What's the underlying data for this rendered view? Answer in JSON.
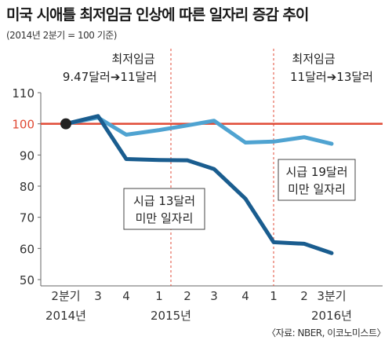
{
  "title": "미국 시애틀 최저임금 인상에 따른 일자리 증감 추이",
  "subtitle": "(2014년 2분기 = 100 기준)",
  "source": "〈자료: NBER, 이코노미스트〉",
  "annotations": {
    "wage1_title": "최저임금",
    "wage1_value": "9.47달러➔11달러",
    "wage2_title": "최저임금",
    "wage2_value": "11달러➔13달러"
  },
  "chart_data": {
    "type": "line",
    "categories": [
      "2분기",
      "3",
      "4",
      "1",
      "2",
      "3",
      "4",
      "1",
      "2",
      "3분기"
    ],
    "year_labels": [
      "2014년",
      "2015년",
      "2016년"
    ],
    "ylim": [
      50,
      110
    ],
    "yticks": [
      "110",
      "100",
      "90",
      "80",
      "70",
      "60",
      "50"
    ],
    "baseline": 100,
    "series": [
      {
        "name": "시급 19달러 미만 일자리",
        "label_lines": [
          "시급 19달러",
          "미만 일자리"
        ],
        "color": "#4fa3d1",
        "values": [
          100,
          102,
          96.5,
          98,
          99.5,
          101,
          94,
          94.3,
          95.7,
          93.6
        ]
      },
      {
        "name": "시급 13달러 미만 일자리",
        "label_lines": [
          "시급 13달러",
          "미만 일자리"
        ],
        "color": "#1a5d8f",
        "values": [
          100,
          102.5,
          88.7,
          88.4,
          88.3,
          85.5,
          76,
          62,
          61.5,
          58.5
        ]
      }
    ],
    "colors": {
      "baseline": "#e04a35",
      "marker": "#222222",
      "axis": "#666666"
    }
  }
}
